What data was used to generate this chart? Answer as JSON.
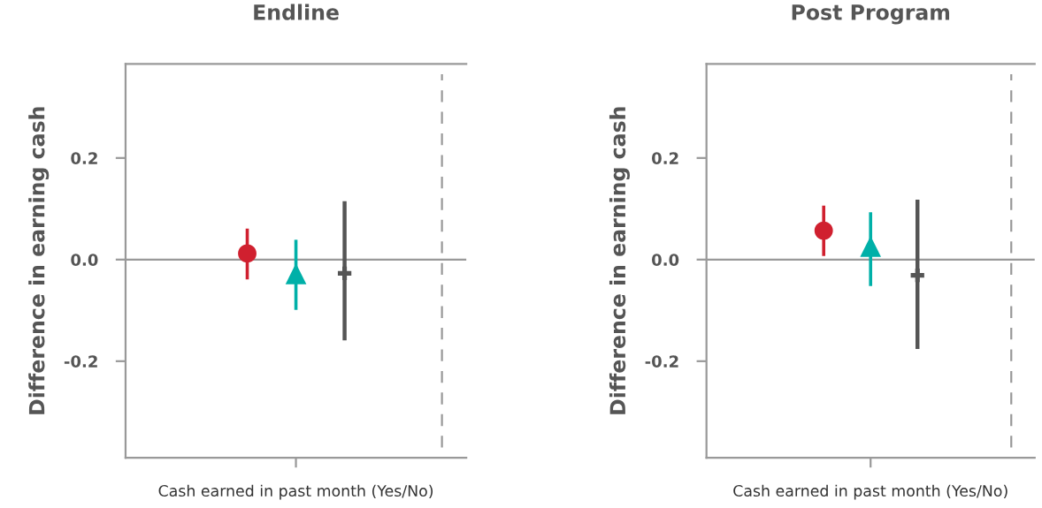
{
  "chart_data": [
    {
      "type": "scatter",
      "title": "Endline",
      "xlabel": "Cash earned in past month (Yes/No)",
      "ylabel": "Difference in earning cash",
      "categories": [
        null,
        null,
        null,
        null,
        null,
        null,
        null
      ],
      "ylim": [
        -0.39,
        0.385
      ],
      "yticks": [
        {
          "value": 0.2,
          "label": "0.2"
        },
        {
          "value": 0.0,
          "label": "0.0"
        },
        {
          "value": -0.2,
          "label": "-0.2"
        }
      ],
      "tick_labels": "y",
      "grid": false,
      "legend": false,
      "series": [
        {
          "color": "#d0202f",
          "marker": "circle",
          "values": [
            null,
            null,
            0.012,
            null,
            null,
            null,
            null
          ],
          "errors": [
            null,
            null,
            [
              -0.039,
              0.061
            ],
            null,
            null,
            null,
            null
          ]
        },
        {
          "color": "#00b0a8",
          "marker": "triangle",
          "values": [
            null,
            null,
            null,
            -0.028,
            null,
            null,
            null
          ],
          "errors": [
            null,
            null,
            null,
            [
              -0.099,
              0.039
            ],
            null,
            null,
            null
          ]
        },
        {
          "color": "#555555",
          "marker": "cross",
          "values": [
            null,
            null,
            null,
            null,
            -0.027,
            null,
            null
          ],
          "errors": [
            null,
            null,
            null,
            null,
            [
              -0.159,
              0.115
            ],
            null,
            null
          ]
        }
      ],
      "ref_lines": [
        {
          "axis": "y",
          "value": 0.0,
          "color": "#999999",
          "line_style": "solid"
        },
        {
          "axis": "x",
          "color": "#999999",
          "line_style": "dashed"
        }
      ]
    },
    {
      "type": "scatter",
      "title": "Post Program",
      "xlabel": "Cash earned in past month (Yes/No)",
      "ylabel": "Difference in earning cash",
      "categories": [
        null,
        null,
        null,
        null,
        null,
        null,
        null
      ],
      "ylim": [
        -0.39,
        0.385
      ],
      "yticks": [
        {
          "value": 0.2,
          "label": "0.2"
        },
        {
          "value": 0.0,
          "label": "0.0"
        },
        {
          "value": -0.2,
          "label": "-0.2"
        }
      ],
      "tick_labels": "y",
      "grid": false,
      "legend": false,
      "series": [
        {
          "color": "#d0202f",
          "marker": "circle",
          "values": [
            null,
            null,
            0.057,
            null,
            null,
            null,
            null
          ],
          "errors": [
            null,
            null,
            [
              0.007,
              0.106
            ],
            null,
            null,
            null,
            null
          ]
        },
        {
          "color": "#00b0a8",
          "marker": "triangle",
          "values": [
            null,
            null,
            null,
            0.026,
            null,
            null,
            null
          ],
          "errors": [
            null,
            null,
            null,
            [
              -0.052,
              0.093
            ],
            null,
            null,
            null
          ]
        },
        {
          "color": "#555555",
          "marker": "cross",
          "values": [
            null,
            null,
            null,
            null,
            -0.031,
            null,
            null
          ],
          "errors": [
            null,
            null,
            null,
            null,
            [
              -0.176,
              0.118
            ],
            null,
            null
          ]
        }
      ],
      "ref_lines": [
        {
          "axis": "y",
          "value": 0.0,
          "color": "#999999",
          "line_style": "solid"
        },
        {
          "axis": "x",
          "color": "#999999",
          "line_style": "dashed"
        }
      ]
    }
  ]
}
